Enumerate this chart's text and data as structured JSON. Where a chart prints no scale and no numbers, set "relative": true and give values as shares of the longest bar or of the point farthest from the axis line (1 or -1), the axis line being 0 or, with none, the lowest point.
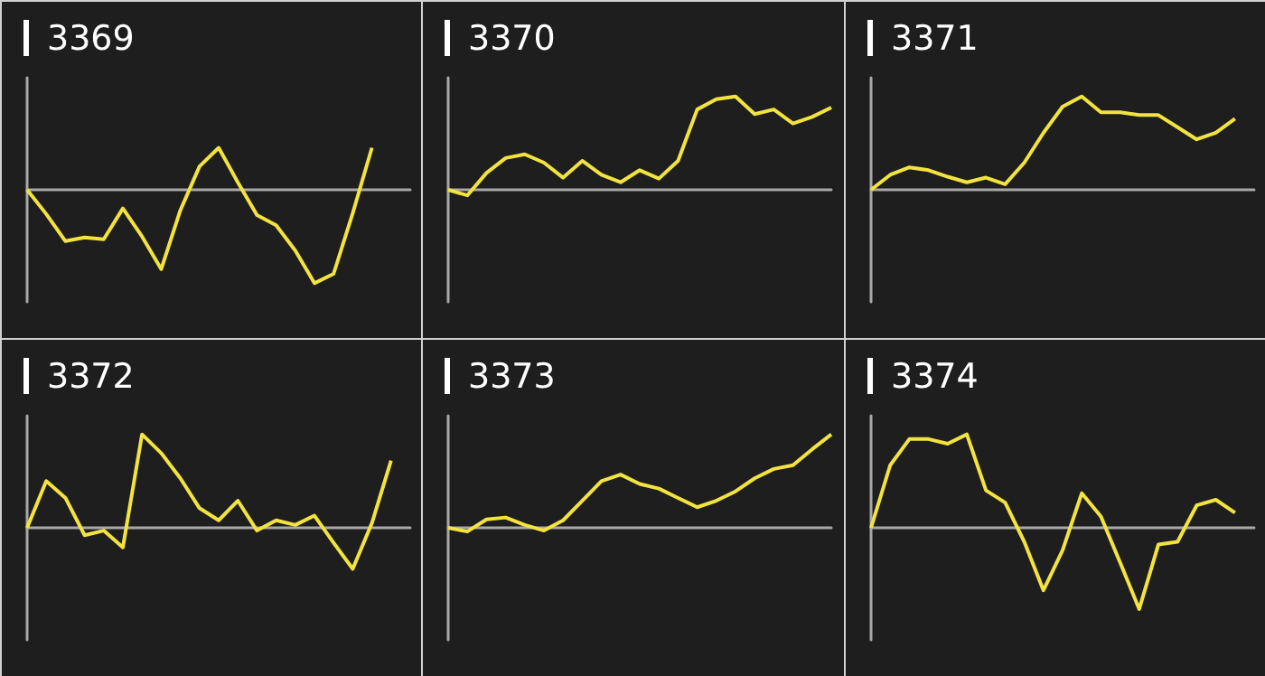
{
  "chart_data": [
    {
      "type": "line",
      "title": "3369",
      "relative": true,
      "color": "#f2e33f",
      "categories": [
        null,
        null,
        null,
        null,
        null,
        null,
        null,
        null,
        null,
        null,
        null,
        null,
        null,
        null,
        null,
        null,
        null,
        null,
        null,
        null,
        null
      ],
      "values": [
        0,
        -0.26,
        -0.55,
        -0.51,
        -0.53,
        -0.2,
        -0.5,
        -0.85,
        -0.22,
        0.25,
        0.45,
        0.08,
        -0.27,
        -0.38,
        -0.65,
        -1,
        -0.9,
        -0.25,
        0.45,
        null,
        null
      ]
    },
    {
      "type": "line",
      "title": "3370",
      "relative": true,
      "color": "#f2e33f",
      "categories": [
        null,
        null,
        null,
        null,
        null,
        null,
        null,
        null,
        null,
        null,
        null,
        null,
        null,
        null,
        null,
        null,
        null,
        null,
        null,
        null,
        null
      ],
      "values": [
        0,
        -0.06,
        0.18,
        0.34,
        0.38,
        0.29,
        0.13,
        0.31,
        0.16,
        0.08,
        0.21,
        0.12,
        0.31,
        0.86,
        0.97,
        1,
        0.81,
        0.86,
        0.71,
        0.78,
        0.88
      ]
    },
    {
      "type": "line",
      "title": "3371",
      "relative": true,
      "color": "#f2e33f",
      "categories": [
        null,
        null,
        null,
        null,
        null,
        null,
        null,
        null,
        null,
        null,
        null,
        null,
        null,
        null,
        null,
        null,
        null,
        null,
        null,
        null,
        null
      ],
      "values": [
        0,
        0.16,
        0.24,
        0.21,
        0.14,
        0.08,
        0.13,
        0.06,
        0.29,
        0.61,
        0.89,
        1,
        0.83,
        0.83,
        0.8,
        0.8,
        0.67,
        0.54,
        0.61,
        0.76,
        null
      ]
    },
    {
      "type": "line",
      "title": "3372",
      "relative": true,
      "color": "#f2e33f",
      "categories": [
        null,
        null,
        null,
        null,
        null,
        null,
        null,
        null,
        null,
        null,
        null,
        null,
        null,
        null,
        null,
        null,
        null,
        null,
        null,
        null,
        null
      ],
      "values": [
        0,
        0.5,
        0.32,
        -0.08,
        -0.03,
        -0.21,
        1,
        0.8,
        0.53,
        0.21,
        0.08,
        0.29,
        -0.03,
        0.08,
        0.03,
        0.13,
        -0.16,
        -0.44,
        0.05,
        0.72,
        null
      ]
    },
    {
      "type": "line",
      "title": "3373",
      "relative": true,
      "color": "#f2e33f",
      "categories": [
        null,
        null,
        null,
        null,
        null,
        null,
        null,
        null,
        null,
        null,
        null,
        null,
        null,
        null,
        null,
        null,
        null,
        null,
        null,
        null,
        null
      ],
      "values": [
        0,
        -0.04,
        0.09,
        0.11,
        0.03,
        -0.03,
        0.08,
        0.29,
        0.5,
        0.57,
        0.47,
        0.42,
        0.32,
        0.22,
        0.29,
        0.39,
        0.53,
        0.63,
        0.67,
        0.84,
        1
      ]
    },
    {
      "type": "line",
      "title": "3374",
      "relative": true,
      "color": "#f2e33f",
      "categories": [
        null,
        null,
        null,
        null,
        null,
        null,
        null,
        null,
        null,
        null,
        null,
        null,
        null,
        null,
        null,
        null,
        null,
        null,
        null,
        null,
        null
      ],
      "values": [
        0,
        0.67,
        0.95,
        0.95,
        0.9,
        1,
        0.4,
        0.27,
        -0.15,
        -0.67,
        -0.24,
        0.37,
        0.12,
        -0.37,
        -0.87,
        -0.18,
        -0.15,
        0.24,
        0.3,
        0.16,
        null
      ]
    }
  ]
}
